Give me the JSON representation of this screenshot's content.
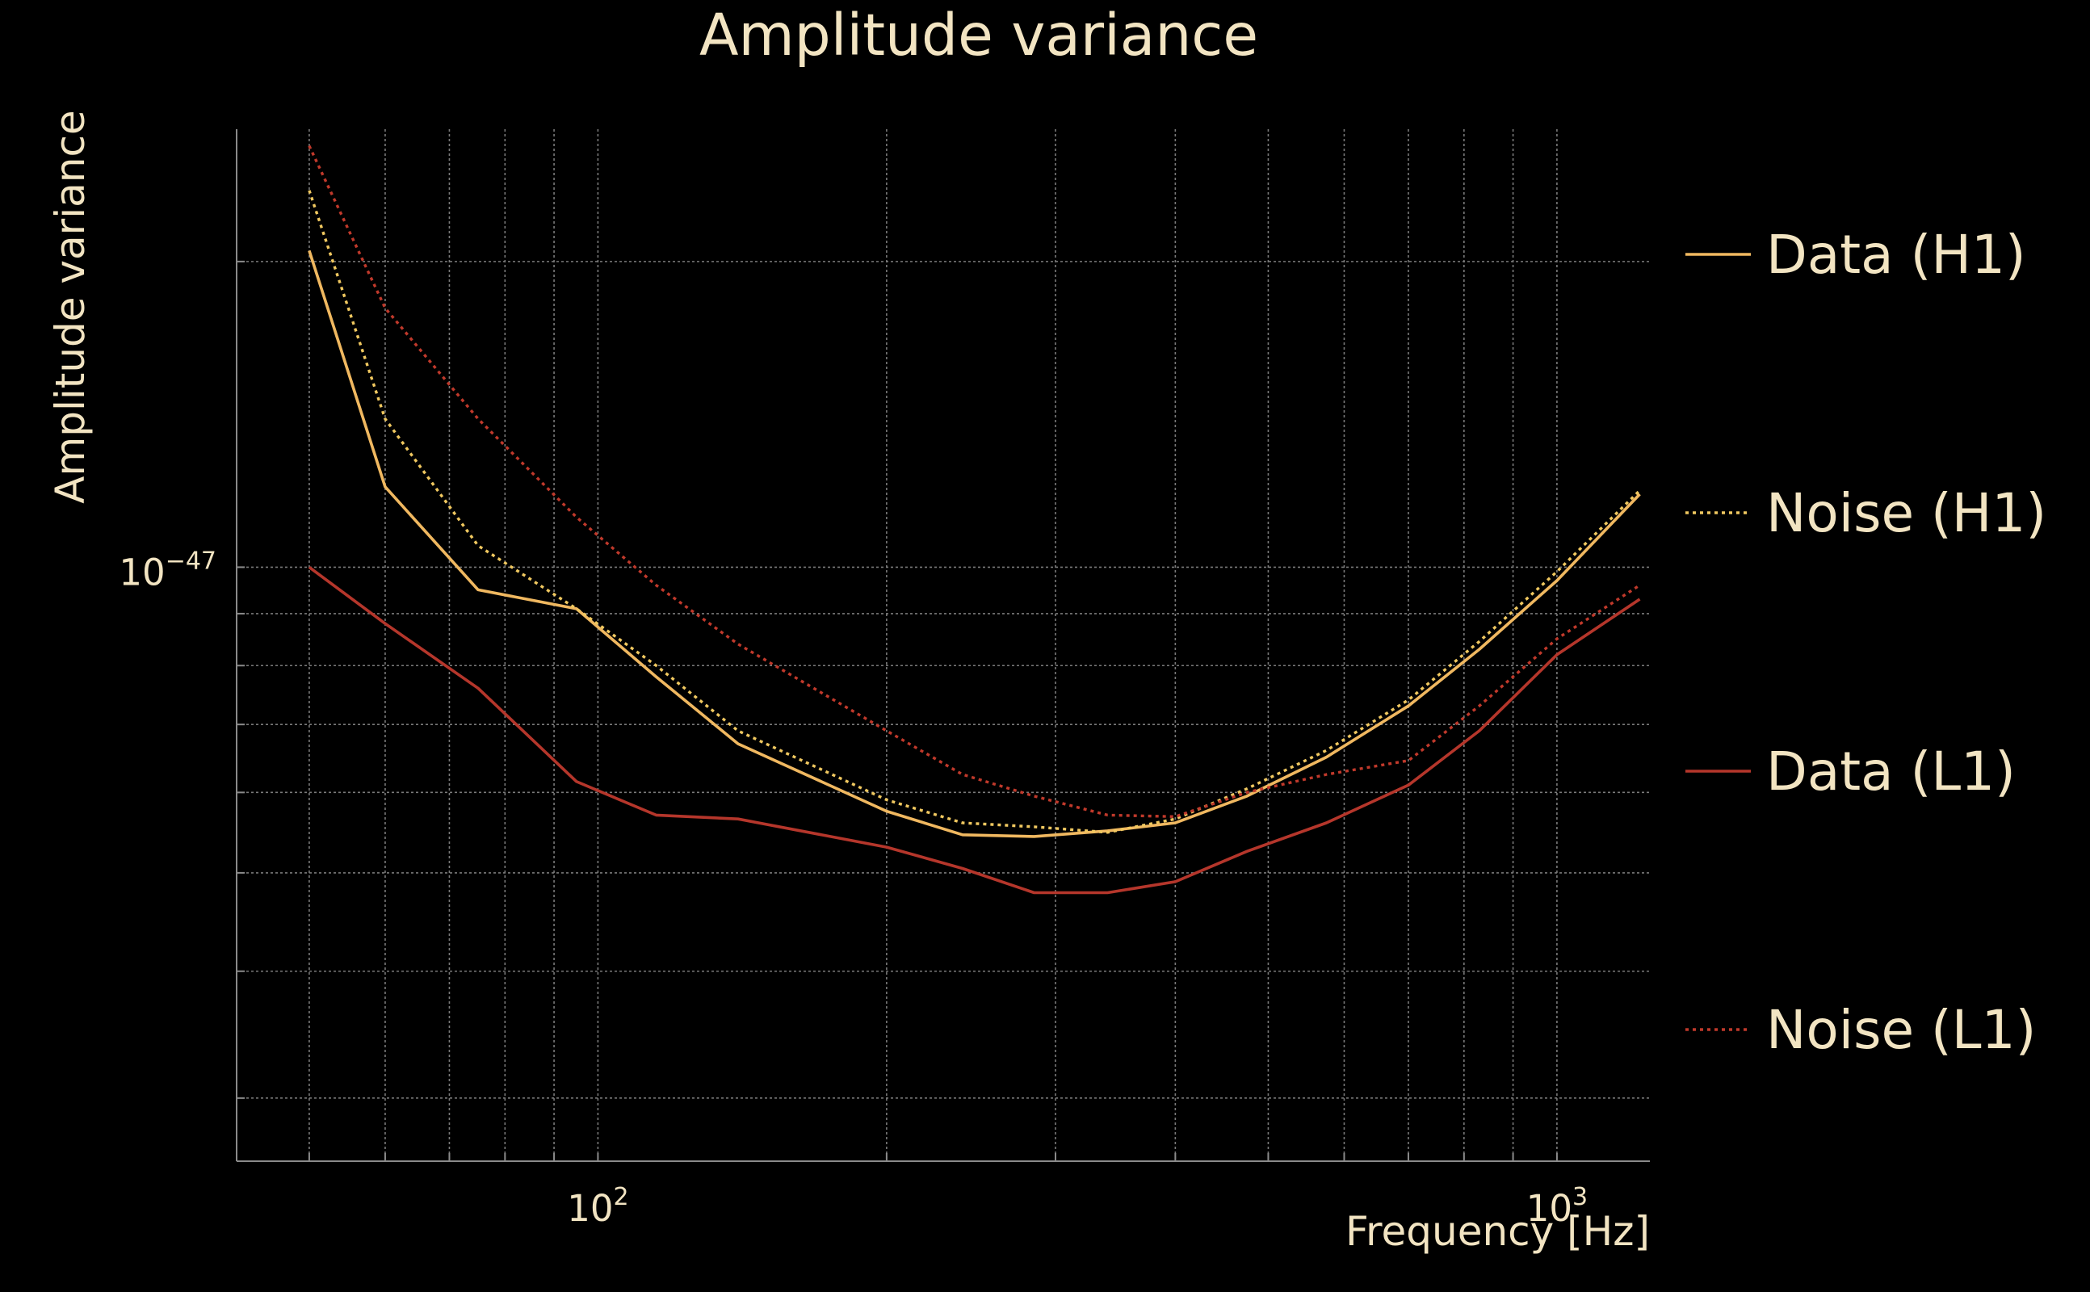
{
  "chart_data": {
    "type": "line",
    "title": "Amplitude variance",
    "xlabel": "Frequency [Hz]",
    "ylabel": "Amplitude variance",
    "xscale": "log",
    "yscale": "log",
    "xlim": [
      42,
      1250
    ],
    "ylim": [
      2.6e-48,
      2.7e-47
    ],
    "grid": true,
    "legend_position": "right",
    "x_ticks": [
      {
        "value": 100,
        "base": "10",
        "exp": "2"
      },
      {
        "value": 1000,
        "base": "10",
        "exp": "3"
      }
    ],
    "y_ticks": [
      {
        "value": 1e-47,
        "base": "10",
        "exp": "−47"
      }
    ],
    "x": [
      50,
      60,
      75,
      95,
      115,
      140,
      200,
      240,
      285,
      340,
      400,
      475,
      575,
      700,
      830,
      1000,
      1220
    ],
    "series": [
      {
        "name": "Data (H1)",
        "color": "#f0b860",
        "dash": "solid",
        "values": [
          2.05e-47,
          1.2e-47,
          9.5e-48,
          9.1e-48,
          7.8e-48,
          6.7e-48,
          5.75e-48,
          5.45e-48,
          5.43e-48,
          5.5e-48,
          5.6e-48,
          5.95e-48,
          6.5e-48,
          7.3e-48,
          8.3e-48,
          9.7e-48,
          1.18e-47
        ]
      },
      {
        "name": "Noise (H1)",
        "color": "#f0c860",
        "dash": "dotted",
        "values": [
          2.35e-47,
          1.4e-47,
          1.05e-47,
          9.1e-48,
          8e-48,
          6.9e-48,
          5.9e-48,
          5.6e-48,
          5.55e-48,
          5.48e-48,
          5.65e-48,
          6.05e-48,
          6.6e-48,
          7.4e-48,
          8.45e-48,
          9.9e-48,
          1.19e-47
        ]
      },
      {
        "name": "Data (L1)",
        "color": "#b5362b",
        "dash": "solid",
        "values": [
          1e-47,
          8.8e-48,
          7.6e-48,
          6.15e-48,
          5.7e-48,
          5.65e-48,
          5.3e-48,
          5.05e-48,
          4.78e-48,
          4.78e-48,
          4.9e-48,
          5.25e-48,
          5.6e-48,
          6.1e-48,
          6.9e-48,
          8.2e-48,
          9.3e-48
        ]
      },
      {
        "name": "Noise (L1)",
        "color": "#c0392b",
        "dash": "dotted",
        "values": [
          2.6e-47,
          1.8e-47,
          1.4e-47,
          1.12e-47,
          9.6e-48,
          8.4e-48,
          6.9e-48,
          6.25e-48,
          5.95e-48,
          5.7e-48,
          5.68e-48,
          6e-48,
          6.25e-48,
          6.45e-48,
          7.3e-48,
          8.5e-48,
          9.6e-48
        ]
      }
    ]
  }
}
